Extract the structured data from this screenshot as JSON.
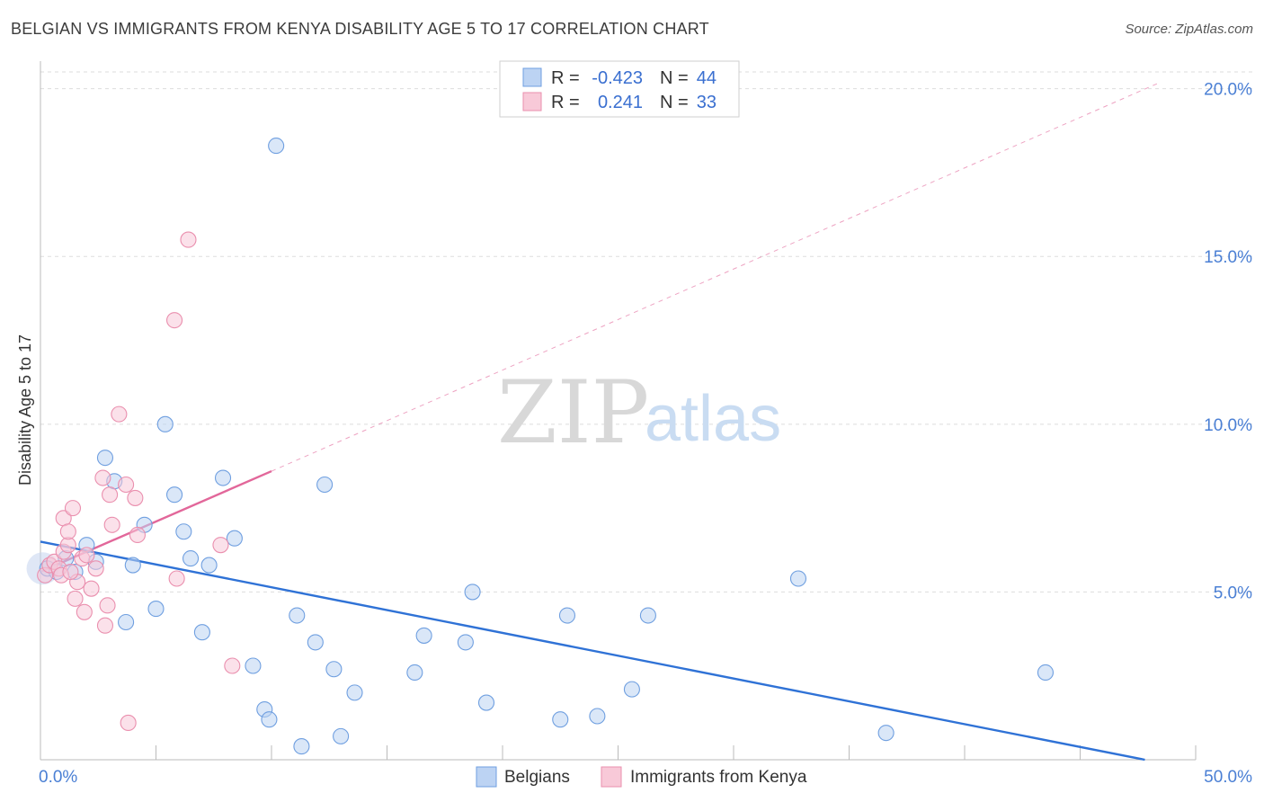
{
  "title": "BELGIAN VS IMMIGRANTS FROM KENYA DISABILITY AGE 5 TO 17 CORRELATION CHART",
  "source": "Source: ZipAtlas.com",
  "watermark": {
    "zip": "ZIP",
    "atlas": "atlas"
  },
  "legend_box": {
    "rows": [
      {
        "r_label": "R =",
        "r_value": "-0.423",
        "n_label": "N =",
        "n_value": "44"
      },
      {
        "r_label": "R =",
        "r_value": "0.241",
        "n_label": "N =",
        "n_value": "33"
      }
    ]
  },
  "bottom_legend": [
    "Belgians",
    "Immigrants from Kenya"
  ],
  "chart_data": {
    "type": "scatter",
    "title": "BELGIAN VS IMMIGRANTS FROM KENYA DISABILITY AGE 5 TO 17 CORRELATION CHART",
    "xlabel": "",
    "ylabel": "Disability Age 5 to 17",
    "xlim": [
      0,
      50
    ],
    "ylim": [
      0,
      20.5
    ],
    "x_tick_labels": [
      "0.0%",
      "50.0%"
    ],
    "y_ticks": [
      5,
      10,
      15,
      20
    ],
    "y_tick_labels": [
      "5.0%",
      "10.0%",
      "15.0%",
      "20.0%"
    ],
    "grid": true,
    "legend_placement": "top-center",
    "series": [
      {
        "name": "Belgians",
        "color": "#6f9fe0",
        "fill": "#bcd3f3",
        "trend_color": "#2f72d6",
        "r": -0.423,
        "n": 44,
        "trend": {
          "x0": 0,
          "y0": 6.5,
          "x1": 47.8,
          "y1": 0.0
        },
        "points": [
          [
            0.3,
            5.7
          ],
          [
            0.7,
            5.6
          ],
          [
            1.1,
            6.0
          ],
          [
            1.5,
            5.6
          ],
          [
            2.0,
            6.4
          ],
          [
            2.4,
            5.9
          ],
          [
            2.8,
            9.0
          ],
          [
            3.2,
            8.3
          ],
          [
            3.7,
            4.1
          ],
          [
            4.0,
            5.8
          ],
          [
            4.5,
            7.0
          ],
          [
            5.0,
            4.5
          ],
          [
            5.4,
            10.0
          ],
          [
            5.8,
            7.9
          ],
          [
            6.2,
            6.8
          ],
          [
            6.5,
            6.0
          ],
          [
            7.0,
            3.8
          ],
          [
            7.3,
            5.8
          ],
          [
            7.9,
            8.4
          ],
          [
            8.4,
            6.6
          ],
          [
            9.2,
            2.8
          ],
          [
            9.7,
            1.5
          ],
          [
            9.9,
            1.2
          ],
          [
            10.2,
            18.3
          ],
          [
            11.1,
            4.3
          ],
          [
            11.3,
            0.4
          ],
          [
            11.9,
            3.5
          ],
          [
            12.3,
            8.2
          ],
          [
            12.7,
            2.7
          ],
          [
            13.0,
            0.7
          ],
          [
            13.6,
            2.0
          ],
          [
            16.2,
            2.6
          ],
          [
            16.6,
            3.7
          ],
          [
            18.4,
            3.5
          ],
          [
            18.7,
            5.0
          ],
          [
            19.3,
            1.7
          ],
          [
            22.5,
            1.2
          ],
          [
            22.8,
            4.3
          ],
          [
            24.1,
            1.3
          ],
          [
            25.6,
            2.1
          ],
          [
            26.3,
            4.3
          ],
          [
            32.8,
            5.4
          ],
          [
            36.6,
            0.8
          ],
          [
            43.5,
            2.6
          ]
        ]
      },
      {
        "name": "Immigrants from Kenya",
        "color": "#ea8fae",
        "fill": "#f8c9d8",
        "trend_color": "#e2679a",
        "r": 0.241,
        "n": 33,
        "trend": {
          "x0": 0,
          "y0": 5.6,
          "x1": 10.0,
          "y1": 8.6
        },
        "trend_extension": {
          "x0": 10.0,
          "y0": 8.6,
          "x1": 48.5,
          "y1": 20.2
        },
        "points": [
          [
            0.2,
            5.5
          ],
          [
            0.4,
            5.8
          ],
          [
            0.6,
            5.9
          ],
          [
            0.8,
            5.7
          ],
          [
            1.0,
            6.2
          ],
          [
            1.0,
            7.2
          ],
          [
            1.2,
            6.4
          ],
          [
            1.2,
            6.8
          ],
          [
            1.4,
            7.5
          ],
          [
            1.5,
            4.8
          ],
          [
            1.6,
            5.3
          ],
          [
            1.8,
            6.0
          ],
          [
            1.9,
            4.4
          ],
          [
            2.2,
            5.1
          ],
          [
            2.4,
            5.7
          ],
          [
            2.7,
            8.4
          ],
          [
            2.8,
            4.0
          ],
          [
            2.9,
            4.6
          ],
          [
            3.0,
            7.9
          ],
          [
            3.1,
            7.0
          ],
          [
            3.4,
            10.3
          ],
          [
            3.7,
            8.2
          ],
          [
            3.8,
            1.1
          ],
          [
            4.1,
            7.8
          ],
          [
            4.2,
            6.7
          ],
          [
            5.8,
            13.1
          ],
          [
            5.9,
            5.4
          ],
          [
            6.4,
            15.5
          ],
          [
            7.8,
            6.4
          ],
          [
            8.3,
            2.8
          ],
          [
            0.9,
            5.5
          ],
          [
            1.3,
            5.6
          ],
          [
            2.0,
            6.1
          ]
        ]
      }
    ]
  }
}
